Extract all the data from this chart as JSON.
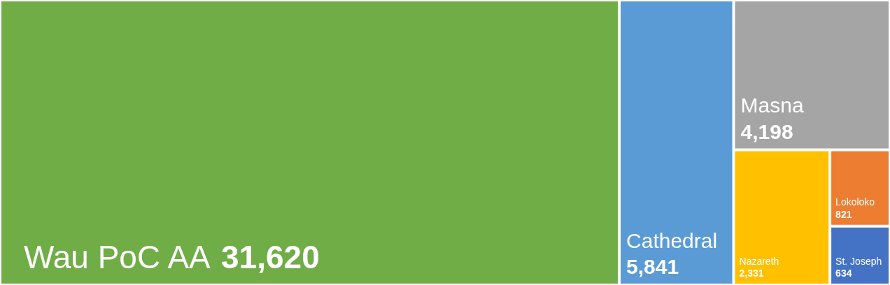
{
  "chart_data": {
    "type": "other",
    "categories": [
      "Wau PoC AA",
      "Cathedral",
      "Masna",
      "Nazareth",
      "Lokoloko",
      "St. Joseph"
    ],
    "values": [
      31620,
      5841,
      4198,
      2331,
      821,
      634
    ],
    "colors": [
      "#70ad47",
      "#5b9bd5",
      "#a5a5a5",
      "#ffc000",
      "#ed7d31",
      "#4472c4"
    ],
    "value_labels": [
      "31,620",
      "5,841",
      "4,198",
      "2,331",
      "821",
      "634"
    ]
  }
}
